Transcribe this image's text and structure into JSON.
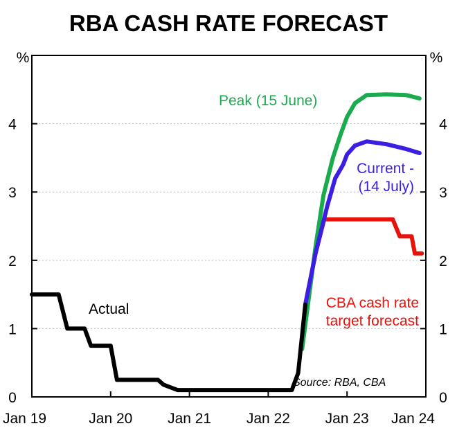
{
  "chart_data": {
    "type": "line",
    "title": "RBA CASH RATE FORECAST",
    "ylabel_left": "%",
    "ylabel_right": "%",
    "ylim": [
      0,
      5
    ],
    "yticks": [
      "0",
      "1",
      "2",
      "3",
      "4"
    ],
    "x_date_range": [
      2019.0,
      2024.0
    ],
    "xticks": [
      {
        "label": "Jan 19",
        "t": 2019.0
      },
      {
        "label": "Jan 20",
        "t": 2020.0
      },
      {
        "label": "Jan 21",
        "t": 2021.0
      },
      {
        "label": "Jan 22",
        "t": 2022.0
      },
      {
        "label": "Jan 23",
        "t": 2023.0
      },
      {
        "label": "Jan 24",
        "t": 2024.0
      }
    ],
    "gridlines": true,
    "source": "Source: RBA, CBA",
    "series": [
      {
        "name": "Actual",
        "label": "Actual",
        "color": "#000000",
        "points": [
          [
            2019.0,
            1.5
          ],
          [
            2019.34,
            1.5
          ],
          [
            2019.45,
            1.0
          ],
          [
            2019.67,
            1.0
          ],
          [
            2019.75,
            0.75
          ],
          [
            2020.0,
            0.75
          ],
          [
            2020.08,
            0.25
          ],
          [
            2020.6,
            0.25
          ],
          [
            2020.67,
            0.18
          ],
          [
            2020.85,
            0.1
          ],
          [
            2021.1,
            0.1
          ],
          [
            2022.0,
            0.1
          ],
          [
            2022.3,
            0.1
          ],
          [
            2022.38,
            0.35
          ],
          [
            2022.47,
            1.35
          ]
        ]
      },
      {
        "name": "Peak (15 June)",
        "label": "Peak (15 June)",
        "color": "#1aab4f",
        "points": [
          [
            2022.43,
            0.7
          ],
          [
            2022.52,
            1.5
          ],
          [
            2022.6,
            2.2
          ],
          [
            2022.7,
            2.95
          ],
          [
            2022.82,
            3.5
          ],
          [
            2022.92,
            3.85
          ],
          [
            2023.0,
            4.1
          ],
          [
            2023.1,
            4.3
          ],
          [
            2023.25,
            4.42
          ],
          [
            2023.5,
            4.43
          ],
          [
            2023.75,
            4.42
          ],
          [
            2023.92,
            4.37
          ]
        ]
      },
      {
        "name": "Current - (14 July)",
        "label_lines": [
          "Current -",
          "(14 July)"
        ],
        "color": "#3a1fe3",
        "points": [
          [
            2022.47,
            1.35
          ],
          [
            2022.6,
            2.1
          ],
          [
            2022.75,
            2.8
          ],
          [
            2022.85,
            3.2
          ],
          [
            2022.95,
            3.4
          ],
          [
            2023.0,
            3.55
          ],
          [
            2023.1,
            3.68
          ],
          [
            2023.25,
            3.74
          ],
          [
            2023.5,
            3.7
          ],
          [
            2023.75,
            3.63
          ],
          [
            2023.92,
            3.57
          ]
        ]
      },
      {
        "name": "CBA cash rate target forecast",
        "label_lines": [
          "CBA cash rate",
          "target forecast"
        ],
        "color": "#e8120c",
        "points": [
          [
            2022.47,
            1.35
          ],
          [
            2022.6,
            2.1
          ],
          [
            2022.71,
            2.6
          ],
          [
            2023.0,
            2.6
          ],
          [
            2023.58,
            2.6
          ],
          [
            2023.67,
            2.35
          ],
          [
            2023.82,
            2.35
          ],
          [
            2023.86,
            2.1
          ],
          [
            2023.95,
            2.1
          ]
        ]
      }
    ]
  }
}
